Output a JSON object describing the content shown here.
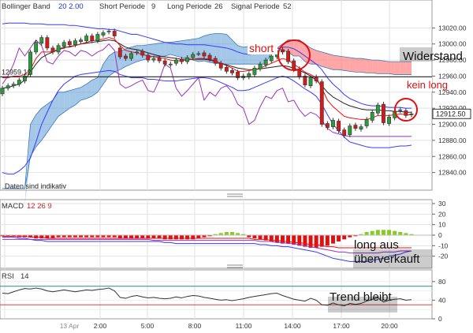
{
  "main_header": {
    "items": [
      {
        "name": "Bollinger Band",
        "params": "20  2.00",
        "param_color": "#2233cc"
      },
      {
        "name": "Short Periode",
        "params": "9",
        "param_color": "#333333"
      },
      {
        "name": "Long Periode",
        "params": "26",
        "param_color": "#333333"
      },
      {
        "name": "Signal Periode",
        "params": "52",
        "param_color": "#333333"
      }
    ]
  },
  "indicative_note": "Daten sind indikativ",
  "level_label": "12959.12",
  "current_price_label": "12912.50",
  "annotations": {
    "short": "short",
    "widerstand": "Widerstand",
    "kein_long": "kein long",
    "long_aus": "long aus",
    "ueberverkauft": "überverkauft",
    "trend_bleibt": "Trend bleibt"
  },
  "macd_header": {
    "name": "MACD",
    "params": "12  26  9"
  },
  "rsi_header": {
    "name": "RSI",
    "params": "14"
  },
  "colors": {
    "cloud_bull": "#5b9bd5",
    "cloud_bear": "#ff8080",
    "bb": "#3a3aff",
    "red_line": "#ee1111",
    "purple": "#9933bb",
    "dark": "#222222",
    "hist_neg": "#dd1111",
    "hist_pos": "#88cc22",
    "annot_red": "#e01010"
  },
  "chart_data": [
    {
      "type": "candlestick",
      "ylim": [
        12820,
        13040
      ],
      "yticks": [
        12840,
        12860,
        12880,
        12900,
        12920,
        12940,
        12960,
        12980,
        13000,
        13020
      ],
      "horizontal_line": 12959.12,
      "x_labels": [
        "13 Apr",
        "2:00",
        "5:00",
        "8:00",
        "11:00",
        "14:00",
        "17:00",
        "20:00"
      ],
      "close": [
        12945,
        12948,
        12950,
        12955,
        12960,
        12990,
        13002,
        13008,
        12995,
        12990,
        12998,
        13002,
        12999,
        13004,
        13005,
        13010,
        13004,
        13012,
        13014,
        13016,
        13010,
        12984,
        12982,
        12988,
        12990,
        12986,
        12980,
        12982,
        12979,
        12975,
        12975,
        12980,
        12978,
        12983,
        12987,
        12988,
        12985,
        12981,
        12976,
        12970,
        12966,
        12964,
        12958,
        12960,
        12963,
        12970,
        12975,
        12980,
        12985,
        12992,
        12990,
        12978,
        12968,
        12959,
        12949,
        12958,
        12954,
        12900,
        12896,
        12905,
        12892,
        12886,
        12898,
        12895,
        12897,
        12906,
        12915,
        12924,
        12902,
        12909,
        12916,
        12918,
        12911,
        12913
      ],
      "open": [
        12938,
        12945,
        12948,
        12950,
        12954,
        12962,
        12990,
        13001,
        13008,
        12995,
        12990,
        12997,
        13003,
        12999,
        13003,
        13004,
        13010,
        13004,
        13011,
        13015,
        13016,
        12995,
        12985,
        12982,
        12989,
        12991,
        12986,
        12980,
        12983,
        12979,
        12974,
        12976,
        12981,
        12978,
        12983,
        12988,
        12989,
        12986,
        12982,
        12976,
        12971,
        12967,
        12965,
        12958,
        12959,
        12962,
        12969,
        12974,
        12979,
        12984,
        12993,
        12991,
        12979,
        12969,
        12960,
        12948,
        12959,
        12953,
        12901,
        12897,
        12904,
        12893,
        12887,
        12899,
        12894,
        12898,
        12905,
        12914,
        12925,
        12901,
        12908,
        12917,
        12917,
        12912
      ],
      "bollinger_upper": [
        13025,
        13026,
        13026,
        13026,
        13026,
        13025,
        13025,
        13025,
        13024,
        13024,
        13024,
        13024,
        13023,
        13023,
        13022,
        13021,
        13020,
        13019,
        13019,
        13018,
        13018,
        13016,
        13014,
        13012,
        13012,
        13010,
        13008,
        13006,
        13004,
        13002,
        13001,
        13000,
        13000,
        12999,
        12999,
        12999,
        12999,
        12998,
        12997,
        12996,
        12995,
        12993,
        12990,
        12988,
        12987,
        12988,
        12989,
        12990,
        12992,
        12994,
        12996,
        12996,
        12994,
        12990,
        12985,
        12980,
        12975,
        12968,
        12958,
        12950,
        12944,
        12937,
        12932,
        12929,
        12926,
        12924,
        12923,
        12923,
        12922,
        12921,
        12921,
        12921,
        12920,
        12920
      ],
      "bollinger_lower": [
        12840,
        12838,
        12838,
        12842,
        12848,
        12858,
        12878,
        12900,
        12915,
        12930,
        12942,
        12950,
        12955,
        12960,
        12962,
        12963,
        12964,
        12965,
        12966,
        12967,
        12966,
        12962,
        12960,
        12958,
        12958,
        12958,
        12956,
        12956,
        12955,
        12954,
        12954,
        12954,
        12955,
        12956,
        12957,
        12958,
        12958,
        12957,
        12955,
        12952,
        12949,
        12946,
        12942,
        12942,
        12943,
        12946,
        12949,
        12952,
        12955,
        12958,
        12960,
        12958,
        12954,
        12949,
        12944,
        12940,
        12935,
        12925,
        12912,
        12900,
        12892,
        12884,
        12878,
        12876,
        12874,
        12872,
        12871,
        12871,
        12871,
        12871,
        12872,
        12873,
        12873,
        12874
      ],
      "red_line": [
        12958,
        12958,
        12960,
        12960,
        12962,
        12968,
        12982,
        12990,
        12990,
        12990,
        12994,
        12996,
        12996,
        12998,
        13000,
        13002,
        13004,
        13005,
        13006,
        13008,
        13006,
        12998,
        12992,
        12990,
        12989,
        12987,
        12985,
        12984,
        12983,
        12982,
        12980,
        12979,
        12979,
        12980,
        12981,
        12982,
        12982,
        12981,
        12979,
        12976,
        12973,
        12970,
        12966,
        12966,
        12967,
        12968,
        12970,
        12973,
        12976,
        12979,
        12982,
        12980,
        12975,
        12970,
        12965,
        12962,
        12958,
        12945,
        12930,
        12922,
        12916,
        12910,
        12908,
        12907,
        12906,
        12906,
        12908,
        12911,
        12911,
        12911,
        12912,
        12913,
        12912,
        12912
      ],
      "black_line": [
        12945,
        12946,
        12948,
        12950,
        12955,
        12965,
        12975,
        12983,
        12987,
        12990,
        12993,
        12995,
        12997,
        12998,
        13000,
        13001,
        13002,
        13003,
        13004,
        13005,
        13004,
        13000,
        12996,
        12994,
        12993,
        12991,
        12989,
        12987,
        12985,
        12984,
        12983,
        12982,
        12981,
        12981,
        12981,
        12981,
        12981,
        12980,
        12978,
        12976,
        12974,
        12972,
        12970,
        12969,
        12968,
        12968,
        12969,
        12970,
        12971,
        12972,
        12973,
        12972,
        12970,
        12967,
        12964,
        12960,
        12955,
        12948,
        12940,
        12934,
        12930,
        12926,
        12923,
        12921,
        12919,
        12918,
        12918,
        12918,
        12917,
        12917,
        12916,
        12916,
        12915,
        12915
      ],
      "purple_line": [
        12950,
        12960,
        12975,
        12995,
        12985,
        12995,
        13005,
        12998,
        12978,
        12975,
        12985,
        12992,
        12990,
        12985,
        12992,
        12990,
        12985,
        12990,
        12993,
        13000,
        12992,
        12950,
        12945,
        12948,
        12952,
        12955,
        12942,
        12940,
        12955,
        12975,
        12970,
        12945,
        12935,
        12942,
        12950,
        12958,
        12930,
        12940,
        12935,
        12945,
        12948,
        12940,
        12925,
        12920,
        12900,
        12905,
        12922,
        12935,
        12932,
        12942,
        12945,
        12928,
        12930,
        12918,
        12910,
        12915,
        12912,
        12905,
        12895,
        12890,
        12888,
        12886,
        12885,
        12885,
        12885,
        12885,
        12885,
        12885,
        12885,
        12885,
        12885,
        12885,
        12885,
        12885
      ],
      "cloud_upper": [
        12800,
        12800,
        12800,
        12800,
        12800,
        12900,
        12912,
        12920,
        12925,
        12930,
        12940,
        12940,
        12942,
        12944,
        12946,
        12950,
        12955,
        12958,
        12975,
        12985,
        12990,
        12990,
        12994,
        12996,
        12998,
        12998,
        12999,
        13000,
        13001,
        13002,
        13002,
        13003,
        13004,
        13005,
        13006,
        13007,
        13010,
        13012,
        13013,
        13013,
        13012,
        13005,
        12998,
        12996,
        12997,
        12998,
        12999,
        13001,
        13000,
        12995,
        12992,
        12990,
        12985,
        12985,
        12978,
        12975,
        12975,
        12972,
        12970,
        12968,
        12968,
        12967,
        12966,
        12965,
        12965,
        12964,
        12964,
        12963,
        12963,
        12963,
        12962,
        12962,
        12962,
        12962
      ],
      "cloud_lower": [
        12800,
        12800,
        12800,
        12800,
        12800,
        12860,
        12872,
        12880,
        12890,
        12900,
        12910,
        12915,
        12920,
        12924,
        12930,
        12932,
        12935,
        12940,
        12950,
        12960,
        12965,
        12968,
        12972,
        12975,
        12978,
        12980,
        12982,
        12985,
        12984,
        12985,
        12987,
        12985,
        12983,
        12982,
        12980,
        12978,
        12979,
        12977,
        12976,
        12975,
        12975,
        12975,
        12975,
        12975,
        12975,
        12975,
        12975,
        12975,
        12990,
        12995,
        13000,
        13005,
        13005,
        13005,
        13000,
        12995,
        12992,
        12990,
        12988,
        12986,
        12985,
        12984,
        12983,
        12982,
        12982,
        12981,
        12980,
        12980,
        12979,
        12978,
        12978,
        12978,
        12978,
        12978
      ]
    },
    {
      "type": "bar",
      "title": "MACD",
      "ylim": [
        -30,
        30
      ],
      "yticks": [
        30,
        20,
        10,
        0,
        -10,
        -20
      ],
      "histogram": [
        -1,
        -1,
        -1,
        -2,
        -2,
        -2,
        -3,
        -3,
        -3,
        -3,
        -2,
        -2,
        -2,
        -2,
        -2,
        -2,
        -2,
        -2,
        -2,
        -2,
        -2,
        -3,
        -3,
        -3,
        -3,
        -3,
        -3,
        -3,
        -3,
        -4,
        -4,
        -4,
        -4,
        -4,
        -4,
        -3,
        -2,
        -1,
        1,
        2,
        3,
        3,
        2,
        1,
        -2,
        -3,
        -4,
        -5,
        -6,
        -7,
        -8,
        -8,
        -9,
        -10,
        -11,
        -12,
        -12,
        -11,
        -10,
        -8,
        -6,
        -4,
        -2,
        -1,
        1,
        3,
        4,
        5,
        5,
        5,
        4,
        3,
        2,
        1
      ],
      "macd_line": [
        -2,
        -2,
        -2,
        -3,
        -3,
        -4,
        -5,
        -5,
        -6,
        -6,
        -6,
        -6,
        -6,
        -6,
        -6,
        -6,
        -6,
        -6,
        -6,
        -6,
        -6,
        -6,
        -6,
        -6,
        -6,
        -6,
        -6,
        -6,
        -6,
        -7,
        -7,
        -8,
        -8,
        -8,
        -8,
        -8,
        -8,
        -8,
        -8,
        -8,
        -8,
        -8,
        -8,
        -8,
        -8,
        -8,
        -9,
        -9,
        -10,
        -10,
        -11,
        -11,
        -12,
        -13,
        -14,
        -15,
        -16,
        -18,
        -20,
        -22,
        -23,
        -24,
        -25,
        -25,
        -25,
        -25,
        -24,
        -23,
        -22,
        -20,
        -19,
        -18,
        -16,
        -15
      ],
      "signal_line": [
        -4,
        -4,
        -4,
        -4,
        -4,
        -4,
        -4,
        -4,
        -4,
        -4,
        -4,
        -4,
        -4,
        -4,
        -4,
        -4,
        -4,
        -4,
        -4,
        -4,
        -4,
        -4,
        -4,
        -4,
        -4,
        -4,
        -4,
        -5,
        -5,
        -5,
        -5,
        -5,
        -5,
        -5,
        -5,
        -5,
        -5,
        -5,
        -5,
        -5,
        -5,
        -5,
        -5,
        -5,
        -5,
        -5,
        -6,
        -6,
        -6,
        -7,
        -7,
        -8,
        -8,
        -9,
        -10,
        -11,
        -12,
        -13,
        -14,
        -15,
        -16,
        -16,
        -17,
        -17,
        -17,
        -17,
        -17,
        -17,
        -16,
        -16,
        -16,
        -15,
        -15,
        -15
      ],
      "red_line": [
        -1,
        -1,
        -1,
        -1,
        -1,
        -2,
        -2,
        -2,
        -3,
        -3,
        -3,
        -3,
        -3,
        -3,
        -3,
        -3,
        -3,
        -3,
        -3,
        -3,
        -3,
        -3,
        -3,
        -3,
        -3,
        -3,
        -3,
        -3,
        -3,
        -3,
        -3,
        -3,
        -3,
        -3,
        -3,
        -3,
        -3,
        -3,
        -3,
        -3,
        -3,
        -3,
        -3,
        -3,
        -3,
        -4,
        -4,
        -4,
        -5,
        -5,
        -6,
        -6,
        -7,
        -7,
        -8,
        -9,
        -9,
        -10,
        -11,
        -11,
        -12,
        -12,
        -12,
        -12,
        -12,
        -12,
        -12,
        -12,
        -12,
        -12,
        -12,
        -12,
        -12,
        -12
      ]
    },
    {
      "type": "line",
      "title": "RSI",
      "ylim": [
        0,
        100
      ],
      "yticks": [
        80,
        40,
        0
      ],
      "reference_lines": [
        70,
        30
      ],
      "values": [
        55,
        54,
        58,
        62,
        65,
        64,
        66,
        64,
        60,
        58,
        60,
        62,
        60,
        58,
        60,
        62,
        61,
        63,
        64,
        66,
        60,
        46,
        44,
        48,
        50,
        47,
        45,
        46,
        44,
        43,
        44,
        47,
        45,
        48,
        50,
        49,
        46,
        44,
        42,
        40,
        41,
        39,
        41,
        43,
        46,
        48,
        50,
        52,
        54,
        55,
        50,
        46,
        42,
        40,
        38,
        44,
        40,
        30,
        29,
        34,
        30,
        28,
        33,
        31,
        33,
        38,
        42,
        45,
        36,
        40,
        42,
        43,
        40,
        41
      ]
    }
  ]
}
